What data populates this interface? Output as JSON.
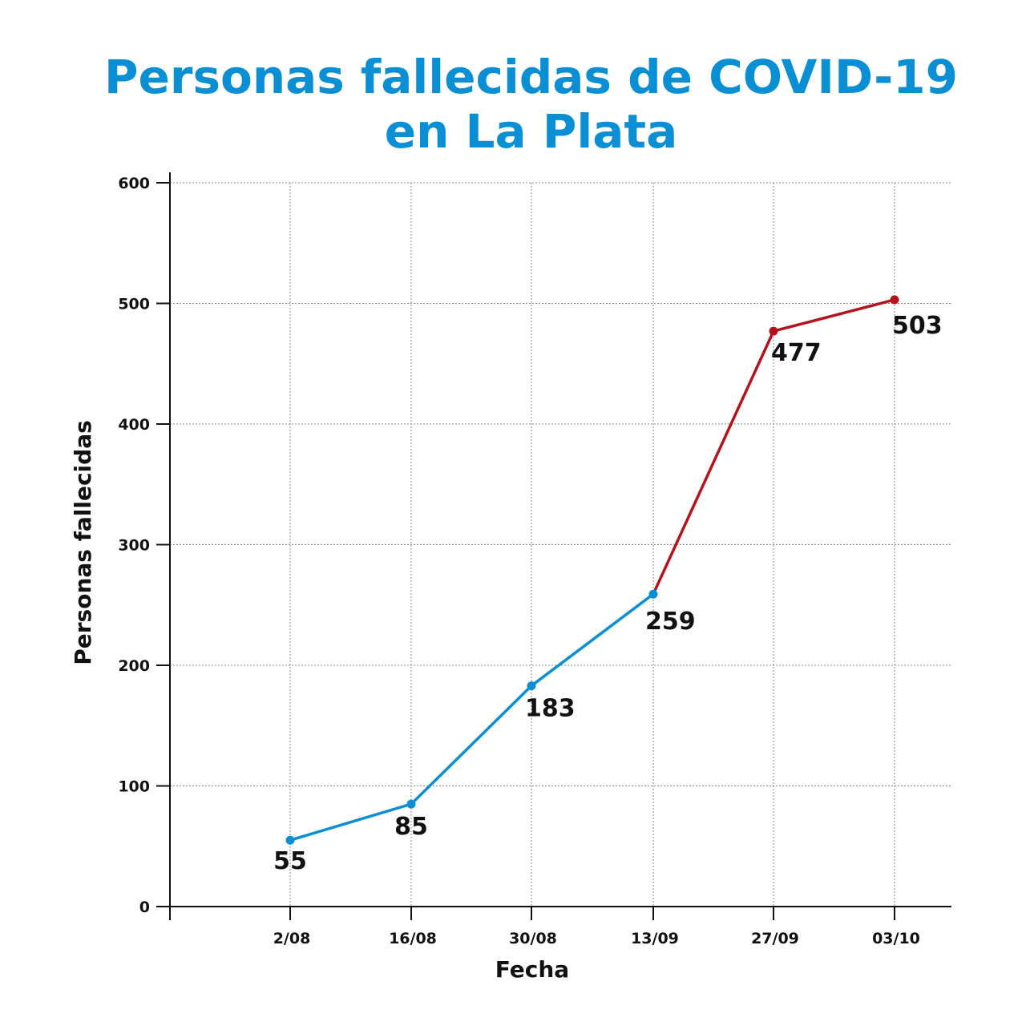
{
  "chart_data": {
    "type": "line",
    "title_line1": "Personas fallecidas de COVID-19",
    "title_line2": "en La Plata",
    "xlabel": "Fecha",
    "ylabel": "Personas fallecidas",
    "ylim": [
      0,
      600
    ],
    "yticks": [
      0,
      100,
      200,
      300,
      400,
      500,
      600
    ],
    "categories": [
      "2/08",
      "16/08",
      "30/08",
      "13/09",
      "27/09",
      "03/10"
    ],
    "values": [
      55,
      85,
      183,
      259,
      477,
      503
    ],
    "series_colors": [
      "#0a8fd4",
      "#0a8fd4",
      "#0a8fd4",
      "#0a8fd4",
      "#b5121b",
      "#b5121b"
    ],
    "grid": true
  }
}
